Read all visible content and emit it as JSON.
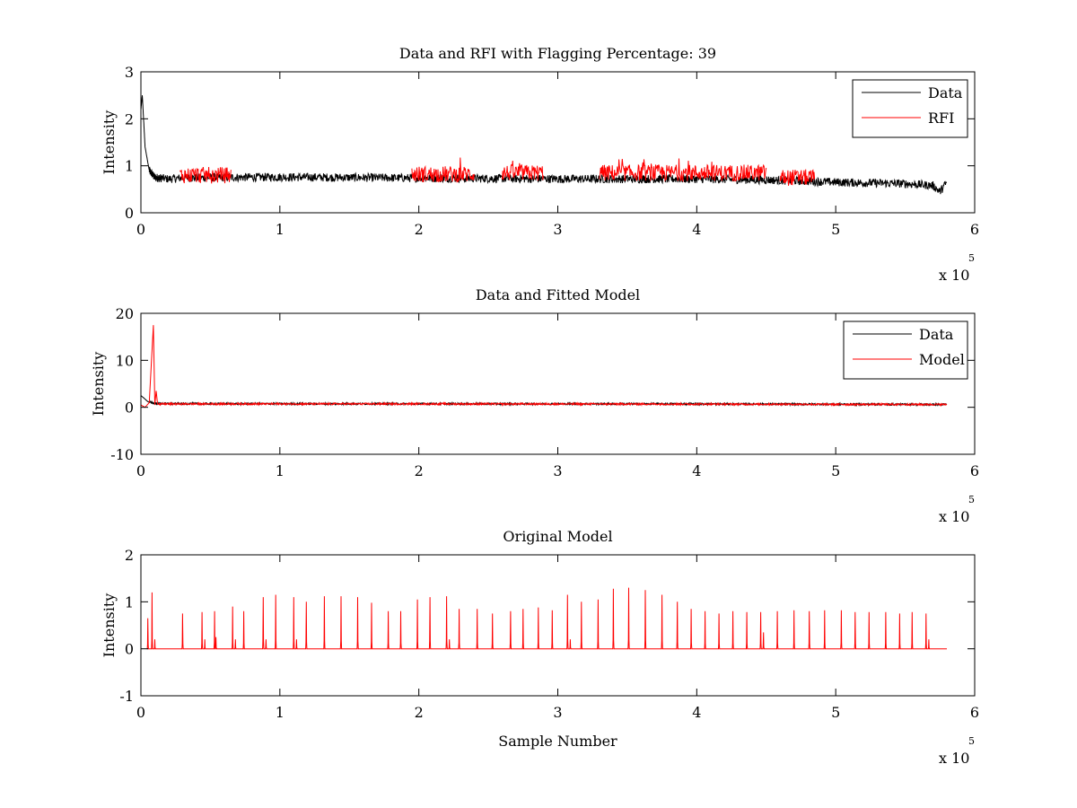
{
  "chart_data": [
    {
      "type": "line",
      "title": "Data and RFI with Flagging Percentage: 39",
      "xlabel": "",
      "ylabel": "Intensity",
      "xlim": [
        0,
        6
      ],
      "ylim": [
        0,
        3
      ],
      "x_multiplier": "x 10",
      "x_multiplier_exp": "5",
      "xticks": [
        "0",
        "1",
        "2",
        "3",
        "4",
        "5",
        "6"
      ],
      "yticks": [
        "0",
        "1",
        "2",
        "3"
      ],
      "legend": [
        "Data",
        "RFI"
      ],
      "legend_position": "top-right",
      "series": [
        {
          "name": "Data",
          "color": "#000000",
          "x": [
            0,
            0.01,
            0.03,
            0.06,
            0.1,
            0.2,
            0.3,
            0.5,
            1.0,
            1.5,
            2.0,
            2.5,
            3.0,
            3.5,
            4.0,
            4.5,
            5.0,
            5.5,
            5.6,
            5.7,
            5.75,
            5.8
          ],
          "y": [
            2.2,
            2.5,
            1.4,
            0.9,
            0.75,
            0.72,
            0.74,
            0.75,
            0.76,
            0.75,
            0.74,
            0.73,
            0.72,
            0.72,
            0.72,
            0.7,
            0.65,
            0.62,
            0.6,
            0.58,
            0.45,
            0.65
          ]
        },
        {
          "name": "RFI",
          "color": "#ff0000",
          "x": [
            0.28,
            0.65,
            1.95,
            2.4,
            2.6,
            2.9,
            3.3,
            4.5,
            4.6,
            4.85
          ],
          "y": [
            0.8,
            0.8,
            0.82,
            0.82,
            0.85,
            0.85,
            0.85,
            0.85,
            0.75,
            0.75
          ]
        }
      ]
    },
    {
      "type": "line",
      "title": "Data and Fitted Model",
      "xlabel": "",
      "ylabel": "Intensity",
      "xlim": [
        0,
        6
      ],
      "ylim": [
        -10,
        20
      ],
      "x_multiplier": "x 10",
      "x_multiplier_exp": "5",
      "xticks": [
        "0",
        "1",
        "2",
        "3",
        "4",
        "5",
        "6"
      ],
      "yticks": [
        "-10",
        "0",
        "10",
        "20"
      ],
      "legend": [
        "Data",
        "Model"
      ],
      "legend_position": "top-right",
      "series": [
        {
          "name": "Data",
          "color": "#000000",
          "x": [
            0,
            0.02,
            0.05,
            0.1,
            0.5,
            1,
            2,
            3,
            4,
            5,
            5.8
          ],
          "y": [
            2.5,
            2.0,
            1.2,
            0.8,
            0.75,
            0.75,
            0.75,
            0.73,
            0.72,
            0.65,
            0.6
          ]
        },
        {
          "name": "Model",
          "color": "#ff0000",
          "x": [
            0,
            0.03,
            0.06,
            0.09,
            0.1,
            0.11,
            0.12,
            0.5,
            1,
            2,
            3,
            4,
            5,
            5.8
          ],
          "y": [
            0.5,
            0,
            1.0,
            17.5,
            0.5,
            3.5,
            0.7,
            0.72,
            0.72,
            0.72,
            0.7,
            0.68,
            0.62,
            0.6
          ]
        }
      ]
    },
    {
      "type": "line",
      "title": "Original Model",
      "xlabel": "Sample Number",
      "ylabel": "Intensity",
      "xlim": [
        0,
        6
      ],
      "ylim": [
        -1,
        2
      ],
      "x_multiplier": "x 10",
      "x_multiplier_exp": "5",
      "xticks": [
        "0",
        "1",
        "2",
        "3",
        "4",
        "5",
        "6"
      ],
      "yticks": [
        "-1",
        "0",
        "1",
        "2"
      ],
      "legend": [],
      "series": [
        {
          "name": "Model",
          "color": "#ff0000",
          "x_range": [
            0.05,
            5.8
          ],
          "baseline": 0,
          "peaks": [
            [
              0.05,
              0.65
            ],
            [
              0.08,
              1.2
            ],
            [
              0.1,
              0.2
            ],
            [
              0.3,
              0.75
            ],
            [
              0.44,
              0.78
            ],
            [
              0.46,
              0.2
            ],
            [
              0.53,
              0.8
            ],
            [
              0.54,
              0.25
            ],
            [
              0.66,
              0.9
            ],
            [
              0.68,
              0.2
            ],
            [
              0.74,
              0.8
            ],
            [
              0.88,
              1.1
            ],
            [
              0.9,
              0.2
            ],
            [
              0.97,
              1.15
            ],
            [
              1.1,
              1.1
            ],
            [
              1.12,
              0.2
            ],
            [
              1.19,
              1.0
            ],
            [
              1.32,
              1.12
            ],
            [
              1.44,
              1.12
            ],
            [
              1.56,
              1.1
            ],
            [
              1.66,
              0.98
            ],
            [
              1.78,
              0.8
            ],
            [
              1.87,
              0.8
            ],
            [
              1.99,
              1.05
            ],
            [
              2.08,
              1.1
            ],
            [
              2.2,
              1.12
            ],
            [
              2.22,
              0.2
            ],
            [
              2.29,
              0.85
            ],
            [
              2.42,
              0.85
            ],
            [
              2.53,
              0.75
            ],
            [
              2.66,
              0.8
            ],
            [
              2.75,
              0.85
            ],
            [
              2.86,
              0.88
            ],
            [
              2.96,
              0.82
            ],
            [
              3.07,
              1.15
            ],
            [
              3.09,
              0.2
            ],
            [
              3.17,
              1.0
            ],
            [
              3.29,
              1.05
            ],
            [
              3.4,
              1.28
            ],
            [
              3.51,
              1.3
            ],
            [
              3.63,
              1.25
            ],
            [
              3.75,
              1.15
            ],
            [
              3.86,
              1.0
            ],
            [
              3.96,
              0.85
            ],
            [
              4.06,
              0.8
            ],
            [
              4.16,
              0.75
            ],
            [
              4.26,
              0.8
            ],
            [
              4.36,
              0.78
            ],
            [
              4.46,
              0.78
            ],
            [
              4.48,
              0.35
            ],
            [
              4.58,
              0.8
            ],
            [
              4.7,
              0.82
            ],
            [
              4.81,
              0.8
            ],
            [
              4.92,
              0.82
            ],
            [
              5.04,
              0.82
            ],
            [
              5.14,
              0.78
            ],
            [
              5.24,
              0.78
            ],
            [
              5.36,
              0.78
            ],
            [
              5.46,
              0.75
            ],
            [
              5.55,
              0.78
            ],
            [
              5.65,
              0.75
            ],
            [
              5.67,
              0.2
            ]
          ]
        }
      ]
    }
  ]
}
